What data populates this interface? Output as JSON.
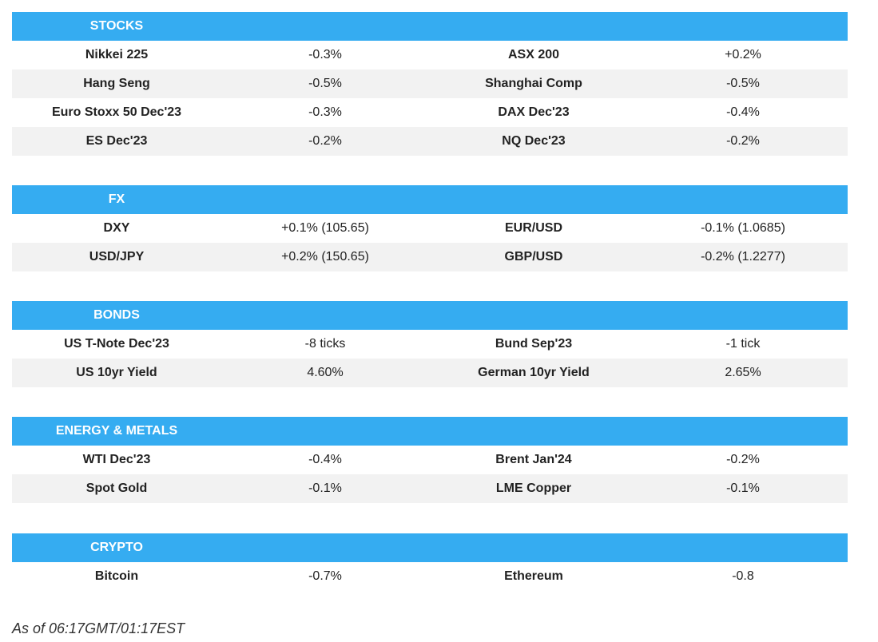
{
  "sections": [
    {
      "title": "STOCKS",
      "rows": [
        [
          "Nikkei 225",
          "-0.3%",
          "ASX 200",
          "+0.2%"
        ],
        [
          "Hang Seng",
          "-0.5%",
          "Shanghai Comp",
          "-0.5%"
        ],
        [
          "Euro Stoxx 50 Dec'23",
          "-0.3%",
          "DAX Dec'23",
          "-0.4%"
        ],
        [
          "ES Dec'23",
          "-0.2%",
          "NQ Dec'23",
          "-0.2%"
        ]
      ]
    },
    {
      "title": "FX",
      "rows": [
        [
          "DXY",
          "+0.1% (105.65)",
          "EUR/USD",
          "-0.1% (1.0685)"
        ],
        [
          "USD/JPY",
          "+0.2% (150.65)",
          "GBP/USD",
          "-0.2% (1.2277)"
        ]
      ]
    },
    {
      "title": "BONDS",
      "rows": [
        [
          "US T-Note Dec'23",
          "-8 ticks",
          "Bund Sep'23",
          "-1 tick"
        ],
        [
          "US 10yr Yield",
          "4.60%",
          "German 10yr Yield",
          "2.65%"
        ]
      ]
    },
    {
      "title": "ENERGY & METALS",
      "rows": [
        [
          "WTI Dec'23",
          "-0.4%",
          "Brent Jan'24",
          "-0.2%"
        ],
        [
          "Spot Gold",
          "-0.1%",
          "LME Copper",
          "-0.1%"
        ]
      ]
    },
    {
      "title": "CRYPTO",
      "rows": [
        [
          "Bitcoin",
          "-0.7%",
          "Ethereum",
          "-0.8"
        ]
      ]
    }
  ],
  "footer": "As of 06:17GMT/01:17EST"
}
